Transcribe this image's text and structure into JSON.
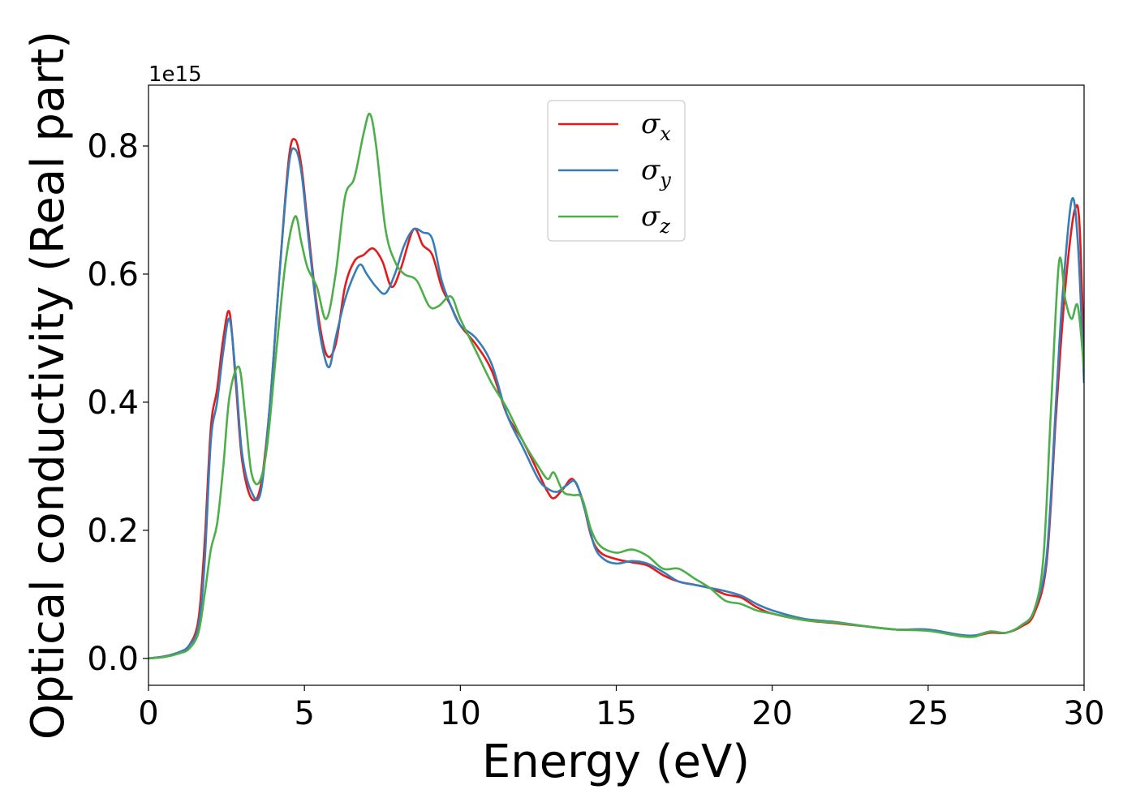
{
  "chart_data": {
    "type": "line",
    "xlabel": "Energy (eV)",
    "ylabel": "Optical conductivity (Real part)",
    "y_offset_label": "1e15",
    "xlim": [
      0,
      30
    ],
    "ylim": [
      -0.042,
      0.895
    ],
    "x_ticks": [
      0,
      5,
      10,
      15,
      20,
      25,
      30
    ],
    "x_tick_labels": [
      "0",
      "5",
      "10",
      "15",
      "20",
      "25",
      "30"
    ],
    "y_ticks": [
      0.0,
      0.2,
      0.4,
      0.6,
      0.8
    ],
    "y_tick_labels": [
      "0.0",
      "0.2",
      "0.4",
      "0.6",
      "0.8"
    ],
    "grid": false,
    "legend_position": "top-center",
    "series": [
      {
        "name": "σ",
        "sub": "x",
        "color": "#e41a1c",
        "x": [
          0,
          0.5,
          1,
          1.3,
          1.6,
          1.8,
          2.0,
          2.2,
          2.4,
          2.6,
          2.8,
          3.0,
          3.3,
          3.6,
          3.9,
          4.2,
          4.5,
          4.7,
          4.9,
          5.1,
          5.4,
          5.7,
          6.0,
          6.3,
          6.6,
          6.9,
          7.2,
          7.5,
          7.8,
          8.1,
          8.5,
          8.8,
          9.1,
          9.4,
          9.7,
          10.0,
          10.5,
          11.0,
          11.5,
          12.0,
          12.5,
          12.8,
          13.0,
          13.3,
          13.6,
          13.9,
          14.2,
          14.5,
          15.0,
          15.5,
          16.0,
          16.5,
          17.0,
          17.5,
          18.0,
          18.5,
          19.0,
          19.5,
          20.0,
          21,
          22,
          23,
          24,
          25,
          26,
          26.5,
          27,
          27.5,
          28.0,
          28.4,
          28.8,
          29.1,
          29.3,
          29.5,
          29.7,
          29.85,
          30.0
        ],
        "y": [
          0,
          0.003,
          0.01,
          0.02,
          0.06,
          0.18,
          0.36,
          0.42,
          0.5,
          0.54,
          0.43,
          0.31,
          0.25,
          0.27,
          0.4,
          0.6,
          0.78,
          0.81,
          0.77,
          0.68,
          0.55,
          0.475,
          0.49,
          0.58,
          0.62,
          0.63,
          0.64,
          0.62,
          0.58,
          0.61,
          0.67,
          0.645,
          0.63,
          0.58,
          0.55,
          0.52,
          0.49,
          0.45,
          0.38,
          0.34,
          0.29,
          0.26,
          0.25,
          0.265,
          0.28,
          0.25,
          0.19,
          0.165,
          0.155,
          0.15,
          0.145,
          0.13,
          0.12,
          0.115,
          0.11,
          0.1,
          0.095,
          0.08,
          0.07,
          0.06,
          0.055,
          0.05,
          0.045,
          0.045,
          0.035,
          0.035,
          0.04,
          0.04,
          0.05,
          0.07,
          0.15,
          0.38,
          0.52,
          0.63,
          0.7,
          0.68,
          0.47
        ]
      },
      {
        "name": "σ",
        "sub": "y",
        "color": "#377eb8",
        "x": [
          0,
          0.5,
          1,
          1.3,
          1.6,
          1.8,
          2.0,
          2.2,
          2.4,
          2.6,
          2.8,
          3.0,
          3.3,
          3.6,
          3.9,
          4.2,
          4.5,
          4.7,
          4.9,
          5.1,
          5.4,
          5.6,
          5.8,
          6.0,
          6.3,
          6.6,
          6.8,
          7.0,
          7.3,
          7.6,
          7.9,
          8.2,
          8.5,
          8.8,
          9.1,
          9.4,
          9.7,
          10.0,
          10.5,
          11.0,
          11.5,
          12.0,
          12.5,
          12.8,
          13.1,
          13.4,
          13.7,
          14.0,
          14.3,
          14.6,
          15.0,
          15.5,
          16.0,
          16.5,
          17.0,
          17.5,
          18.0,
          18.5,
          19.0,
          19.5,
          20.0,
          21,
          22,
          23,
          24,
          25,
          26,
          26.5,
          27,
          27.5,
          28.0,
          28.4,
          28.8,
          29.1,
          29.3,
          29.6,
          29.8,
          30.0
        ],
        "y": [
          0,
          0.003,
          0.01,
          0.02,
          0.05,
          0.15,
          0.34,
          0.4,
          0.48,
          0.53,
          0.44,
          0.32,
          0.26,
          0.26,
          0.4,
          0.6,
          0.77,
          0.795,
          0.76,
          0.67,
          0.54,
          0.48,
          0.455,
          0.5,
          0.56,
          0.6,
          0.615,
          0.6,
          0.58,
          0.57,
          0.6,
          0.645,
          0.67,
          0.665,
          0.655,
          0.59,
          0.55,
          0.52,
          0.5,
          0.46,
          0.38,
          0.33,
          0.28,
          0.265,
          0.26,
          0.27,
          0.275,
          0.23,
          0.175,
          0.155,
          0.148,
          0.152,
          0.148,
          0.135,
          0.12,
          0.115,
          0.11,
          0.105,
          0.098,
          0.085,
          0.075,
          0.062,
          0.057,
          0.05,
          0.045,
          0.045,
          0.037,
          0.036,
          0.042,
          0.04,
          0.052,
          0.075,
          0.16,
          0.4,
          0.56,
          0.715,
          0.65,
          0.43
        ]
      },
      {
        "name": "σ",
        "sub": "z",
        "color": "#4daf4a",
        "x": [
          0,
          0.5,
          1,
          1.3,
          1.6,
          1.8,
          2.0,
          2.2,
          2.4,
          2.6,
          2.9,
          3.1,
          3.3,
          3.55,
          3.8,
          4.1,
          4.4,
          4.7,
          4.9,
          5.1,
          5.4,
          5.7,
          6.0,
          6.3,
          6.6,
          6.9,
          7.1,
          7.3,
          7.6,
          7.9,
          8.2,
          8.6,
          9.0,
          9.3,
          9.7,
          10.0,
          10.5,
          11.0,
          11.5,
          12.0,
          12.5,
          12.8,
          13.0,
          13.3,
          13.6,
          13.9,
          14.2,
          14.5,
          15.0,
          15.5,
          16.0,
          16.5,
          17.0,
          17.5,
          18.0,
          18.5,
          19.0,
          19.5,
          20.0,
          21,
          22,
          23,
          24,
          25,
          26,
          26.5,
          27,
          27.5,
          28.0,
          28.4,
          28.7,
          28.95,
          29.2,
          29.4,
          29.6,
          29.8,
          30.0
        ],
        "y": [
          0,
          0.002,
          0.008,
          0.015,
          0.04,
          0.1,
          0.17,
          0.21,
          0.3,
          0.41,
          0.455,
          0.38,
          0.29,
          0.275,
          0.33,
          0.48,
          0.62,
          0.69,
          0.65,
          0.61,
          0.58,
          0.53,
          0.6,
          0.72,
          0.75,
          0.82,
          0.85,
          0.8,
          0.67,
          0.62,
          0.6,
          0.59,
          0.55,
          0.55,
          0.565,
          0.53,
          0.48,
          0.43,
          0.39,
          0.34,
          0.3,
          0.28,
          0.29,
          0.26,
          0.255,
          0.25,
          0.2,
          0.175,
          0.165,
          0.17,
          0.16,
          0.14,
          0.14,
          0.125,
          0.11,
          0.09,
          0.085,
          0.075,
          0.07,
          0.06,
          0.056,
          0.05,
          0.045,
          0.043,
          0.035,
          0.034,
          0.042,
          0.04,
          0.052,
          0.075,
          0.16,
          0.4,
          0.62,
          0.56,
          0.53,
          0.55,
          0.45
        ]
      }
    ]
  }
}
